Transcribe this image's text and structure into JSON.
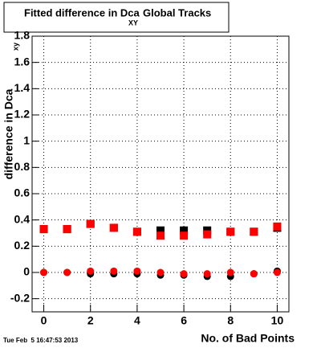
{
  "chart_data": {
    "type": "scatter",
    "title": {
      "text": "Fitted difference in Dca",
      "subscript": "XY",
      "suffix": "Global Tracks"
    },
    "ylabel": {
      "text": "difference in Dca",
      "subscript": "xy"
    },
    "xlabel": "No. of Bad Points",
    "timestamp": "Tue Feb  5 16:47:53 2013",
    "x": [
      0,
      1,
      2,
      3,
      4,
      5,
      6,
      7,
      8,
      9,
      10
    ],
    "series": [
      {
        "color": "#000000",
        "marker": "square",
        "values": [
          0.33,
          0.33,
          0.37,
          0.34,
          0.31,
          0.32,
          0.32,
          0.32,
          0.31,
          0.31,
          0.34
        ]
      },
      {
        "color": "#ff0000",
        "marker": "square",
        "values": [
          0.33,
          0.33,
          0.37,
          0.34,
          0.31,
          0.28,
          0.28,
          0.29,
          0.31,
          0.31,
          0.35
        ]
      },
      {
        "color": "#000000",
        "marker": "circle",
        "values": [
          0.0,
          0.0,
          -0.01,
          -0.01,
          -0.01,
          -0.02,
          -0.02,
          -0.03,
          -0.03,
          -0.01,
          0.01
        ]
      },
      {
        "color": "#ff0000",
        "marker": "circle",
        "values": [
          0.0,
          0.0,
          0.01,
          0.01,
          0.01,
          0.0,
          -0.01,
          -0.01,
          0.0,
          -0.01,
          0.0
        ]
      }
    ],
    "xlim": [
      -0.5,
      10.5
    ],
    "xticks": [
      0,
      2,
      4,
      6,
      8,
      10
    ],
    "ylim": [
      -0.3,
      1.8
    ],
    "yticks": [
      -0.2,
      0,
      0.2,
      0.4,
      0.6,
      0.8,
      1,
      1.2,
      1.4,
      1.6,
      1.8
    ],
    "grid": true
  }
}
